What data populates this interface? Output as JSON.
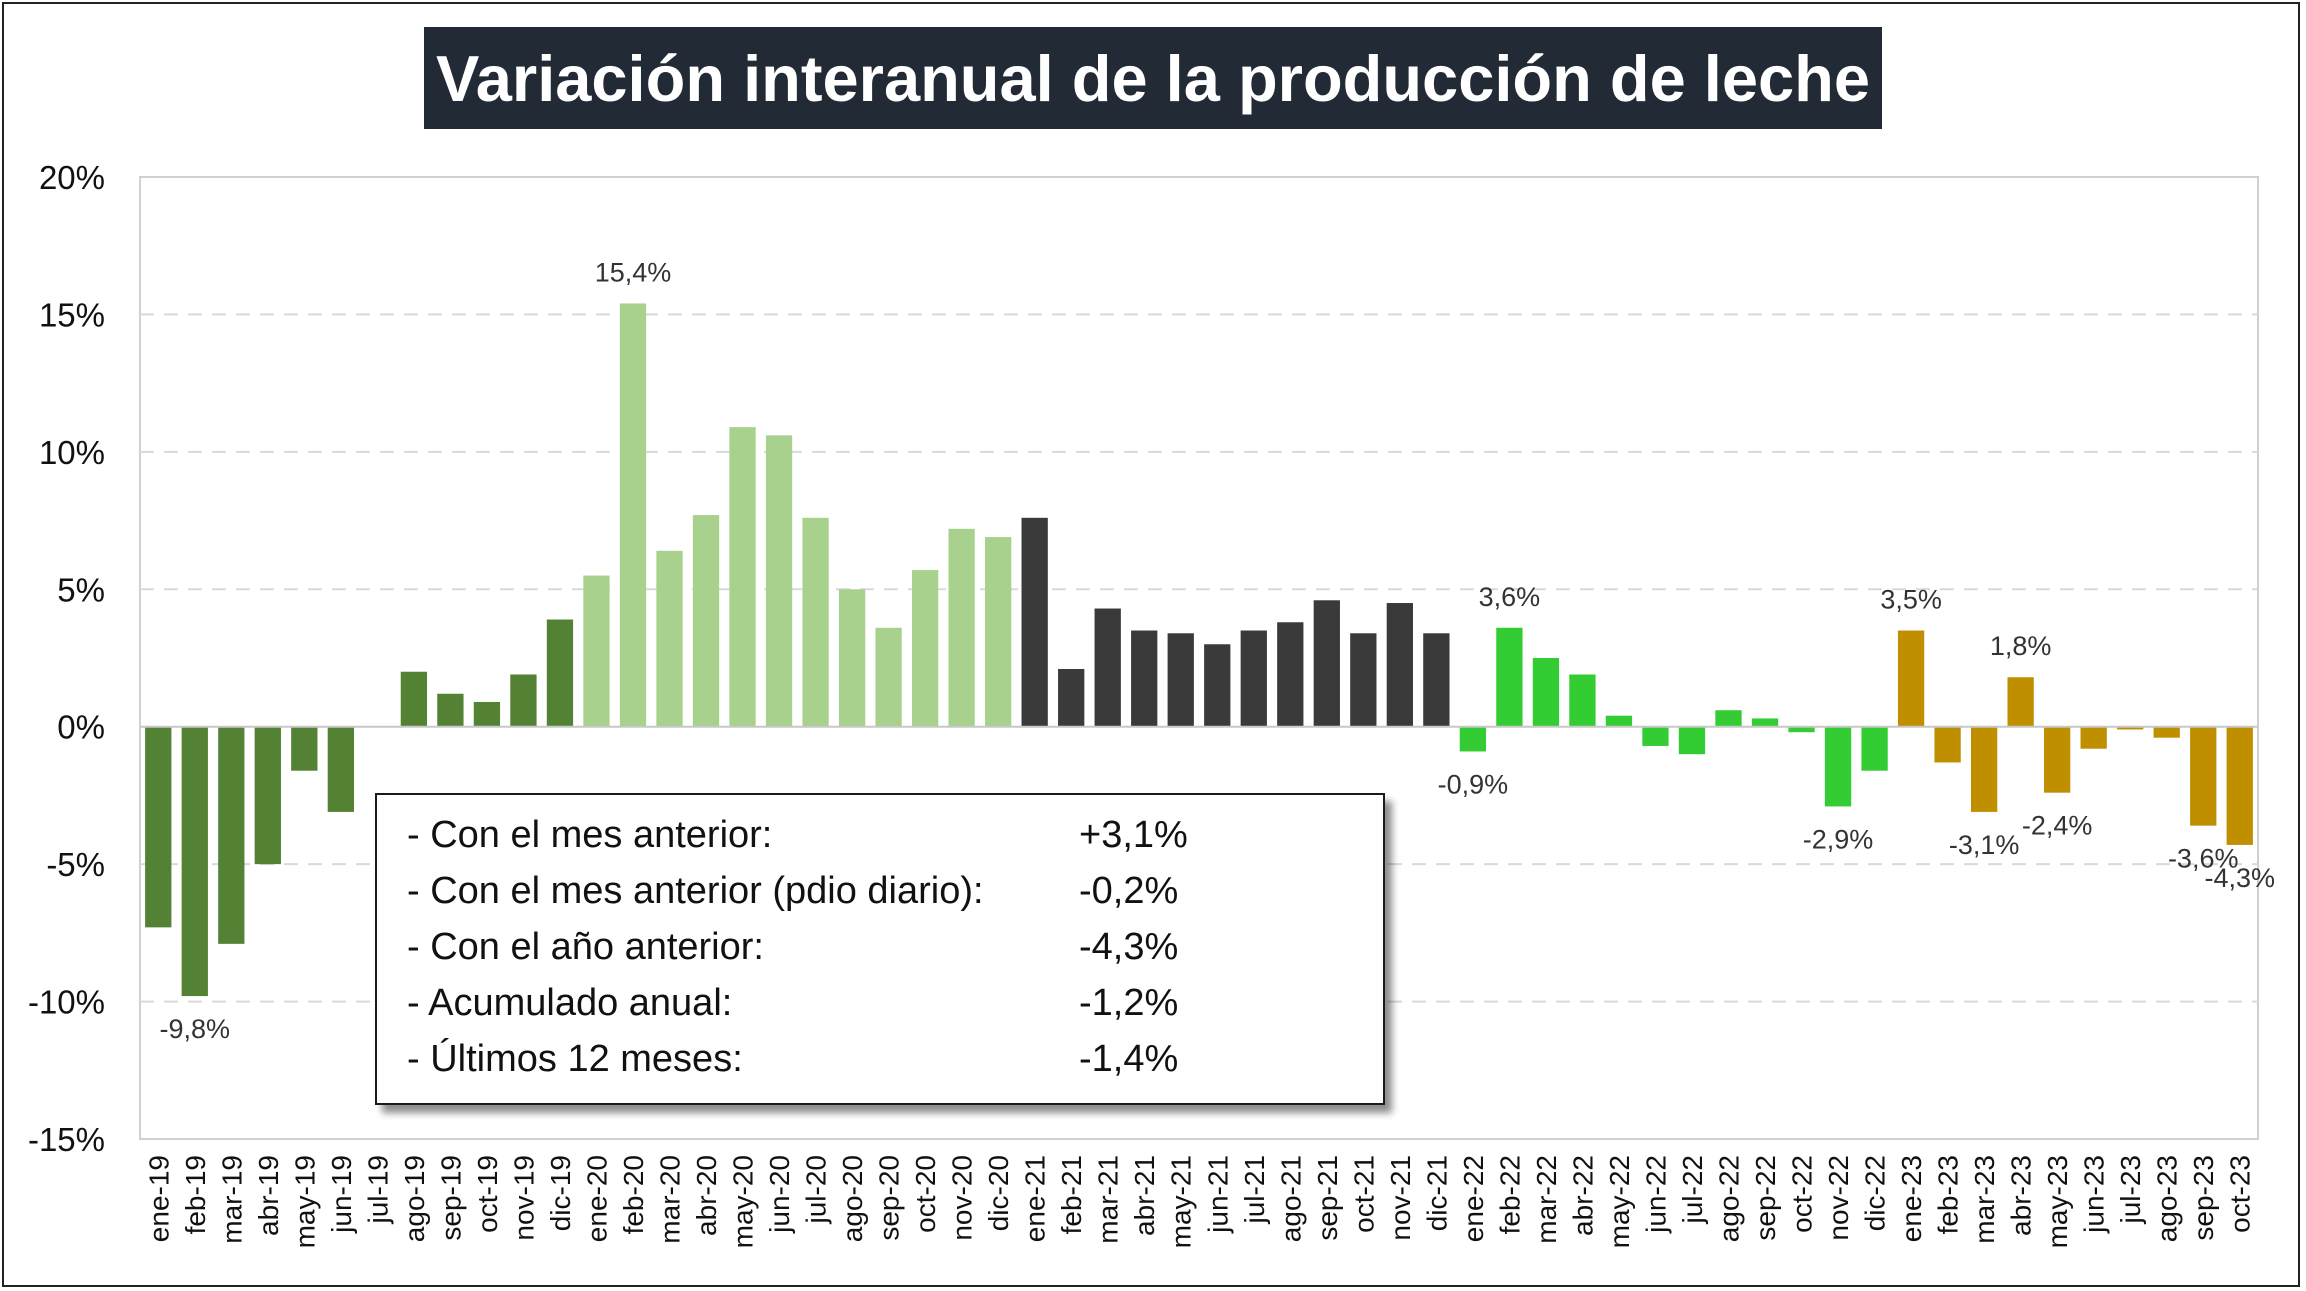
{
  "title": "Variación interanual de la producción de leche",
  "colors": {
    "bar_2019": "#548235",
    "bar_2020": "#a9d18e",
    "bar_2021": "#3a3a3a",
    "bar_2022": "#33cc33",
    "bar_2023": "#bf8f00",
    "grid": "#d9d9d9",
    "title_bg": "#222a35"
  },
  "chart_data": {
    "type": "bar",
    "title": "Variación interanual de la producción de leche",
    "xlabel": "",
    "ylabel": "",
    "ylim": [
      -15,
      20
    ],
    "yticks": [
      -15,
      -10,
      -5,
      0,
      5,
      10,
      15,
      20
    ],
    "ytick_labels": [
      "-15%",
      "-10%",
      "-5%",
      "0%",
      "5%",
      "10%",
      "15%",
      "20%"
    ],
    "grid": true,
    "categories": [
      "ene-19",
      "feb-19",
      "mar-19",
      "abr-19",
      "may-19",
      "jun-19",
      "jul-19",
      "ago-19",
      "sep-19",
      "oct-19",
      "nov-19",
      "dic-19",
      "ene-20",
      "feb-20",
      "mar-20",
      "abr-20",
      "may-20",
      "jun-20",
      "jul-20",
      "ago-20",
      "sep-20",
      "oct-20",
      "nov-20",
      "dic-20",
      "ene-21",
      "feb-21",
      "mar-21",
      "abr-21",
      "may-21",
      "jun-21",
      "jul-21",
      "ago-21",
      "sep-21",
      "oct-21",
      "nov-21",
      "dic-21",
      "ene-22",
      "feb-22",
      "mar-22",
      "abr-22",
      "may-22",
      "jun-22",
      "jul-22",
      "ago-22",
      "sep-22",
      "oct-22",
      "nov-22",
      "dic-22",
      "ene-23",
      "feb-23",
      "mar-23",
      "abr-23",
      "may-23",
      "jun-23",
      "jul-23",
      "ago-23",
      "sep-23",
      "oct-23"
    ],
    "values": [
      -7.3,
      -9.8,
      -7.9,
      -5.0,
      -1.6,
      -3.1,
      0.0,
      2.0,
      1.2,
      0.9,
      1.9,
      3.9,
      5.5,
      15.4,
      6.4,
      7.7,
      10.9,
      10.6,
      7.6,
      5.0,
      3.6,
      5.7,
      7.2,
      6.9,
      7.6,
      2.1,
      4.3,
      3.5,
      3.4,
      3.0,
      3.5,
      3.8,
      4.6,
      3.4,
      4.5,
      3.4,
      -0.9,
      3.6,
      2.5,
      1.9,
      0.4,
      -0.7,
      -1.0,
      0.6,
      0.3,
      -0.2,
      -2.9,
      -1.6,
      3.5,
      -1.3,
      -3.1,
      1.8,
      -2.4,
      -0.8,
      -0.1,
      -0.4,
      -3.6,
      -4.3
    ],
    "data_labels": [
      {
        "category": "feb-19",
        "text": "-9,8%"
      },
      {
        "category": "feb-20",
        "text": "15,4%"
      },
      {
        "category": "ene-22",
        "text": "-0,9%"
      },
      {
        "category": "feb-22",
        "text": "3,6%"
      },
      {
        "category": "nov-22",
        "text": "-2,9%"
      },
      {
        "category": "ene-23",
        "text": "3,5%"
      },
      {
        "category": "mar-23",
        "text": "-3,1%"
      },
      {
        "category": "abr-23",
        "text": "1,8%"
      },
      {
        "category": "may-23",
        "text": "-2,4%"
      },
      {
        "category": "sep-23",
        "text": "-3,6%"
      },
      {
        "category": "oct-23",
        "text": "-4,3%"
      }
    ]
  },
  "stats": [
    {
      "label": "- Con el mes anterior:",
      "value": "+3,1%"
    },
    {
      "label": "- Con el mes anterior (pdio diario):",
      "value": "-0,2%"
    },
    {
      "label": "- Con el año anterior:",
      "value": "-4,3%"
    },
    {
      "label": "- Acumulado anual:",
      "value": "-1,2%"
    },
    {
      "label": "- Últimos 12 meses:",
      "value": "-1,4%"
    }
  ]
}
